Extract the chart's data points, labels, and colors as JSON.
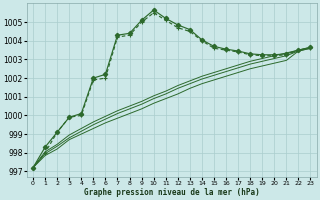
{
  "xlabel": "Graphe pression niveau de la mer (hPa)",
  "background_color": "#cce8e8",
  "grid_color": "#aacece",
  "line_color": "#2d6a2d",
  "ylim": [
    996.7,
    1006.0
  ],
  "xlim": [
    -0.5,
    23.5
  ],
  "yticks": [
    997,
    998,
    999,
    1000,
    1001,
    1002,
    1003,
    1004,
    1005
  ],
  "xticks": [
    0,
    1,
    2,
    3,
    4,
    5,
    6,
    7,
    8,
    9,
    10,
    11,
    12,
    13,
    14,
    15,
    16,
    17,
    18,
    19,
    20,
    21,
    22,
    23
  ],
  "y_peak2_x": [
    0,
    1,
    2,
    3,
    4,
    5,
    6,
    7,
    8,
    9,
    10,
    11,
    12,
    13,
    14,
    15,
    16,
    17,
    18,
    19,
    20,
    21,
    22,
    23
  ],
  "y_peak2": [
    997.2,
    998.3,
    999.1,
    999.9,
    1000.1,
    1002.0,
    1002.2,
    1004.3,
    1004.4,
    1005.1,
    1005.65,
    1005.2,
    1004.85,
    1004.6,
    1004.05,
    1003.7,
    1003.55,
    1003.45,
    1003.3,
    1003.25,
    1003.25,
    1003.3,
    1003.5,
    1003.65
  ],
  "y_straight1": [
    997.2,
    997.85,
    998.2,
    998.7,
    999.0,
    999.3,
    999.6,
    999.85,
    1000.1,
    1000.35,
    1000.65,
    1000.9,
    1001.15,
    1001.45,
    1001.7,
    1001.9,
    1002.1,
    1002.3,
    1002.5,
    1002.65,
    1002.8,
    1002.95,
    1003.45,
    1003.6
  ],
  "y_straight2": [
    997.2,
    997.95,
    998.35,
    998.8,
    999.15,
    999.5,
    999.8,
    1000.1,
    1000.35,
    1000.6,
    1000.9,
    1001.15,
    1001.45,
    1001.7,
    1001.95,
    1002.15,
    1002.35,
    1002.55,
    1002.75,
    1002.9,
    1003.05,
    1003.2,
    1003.45,
    1003.6
  ],
  "y_straight3": [
    997.2,
    998.05,
    998.45,
    998.95,
    999.3,
    999.65,
    999.95,
    1000.25,
    1000.5,
    1000.75,
    1001.05,
    1001.3,
    1001.6,
    1001.85,
    1002.1,
    1002.3,
    1002.5,
    1002.7,
    1002.9,
    1003.05,
    1003.2,
    1003.35,
    1003.5,
    1003.65
  ],
  "y_peak_dotted_x": [
    0,
    1,
    2,
    3,
    4,
    5,
    6,
    7,
    8,
    9,
    10,
    11,
    12,
    13,
    14,
    15,
    16,
    17,
    18,
    19,
    20,
    21,
    22,
    23
  ],
  "y_peak_dotted": [
    997.2,
    998.0,
    999.1,
    999.9,
    1000.0,
    1001.9,
    1002.0,
    1004.2,
    1004.3,
    1005.0,
    1005.5,
    1005.1,
    1004.7,
    1004.5,
    1004.0,
    1003.6,
    1003.5,
    1003.4,
    1003.25,
    1003.2,
    1003.2,
    1003.25,
    1003.5,
    1003.6
  ]
}
